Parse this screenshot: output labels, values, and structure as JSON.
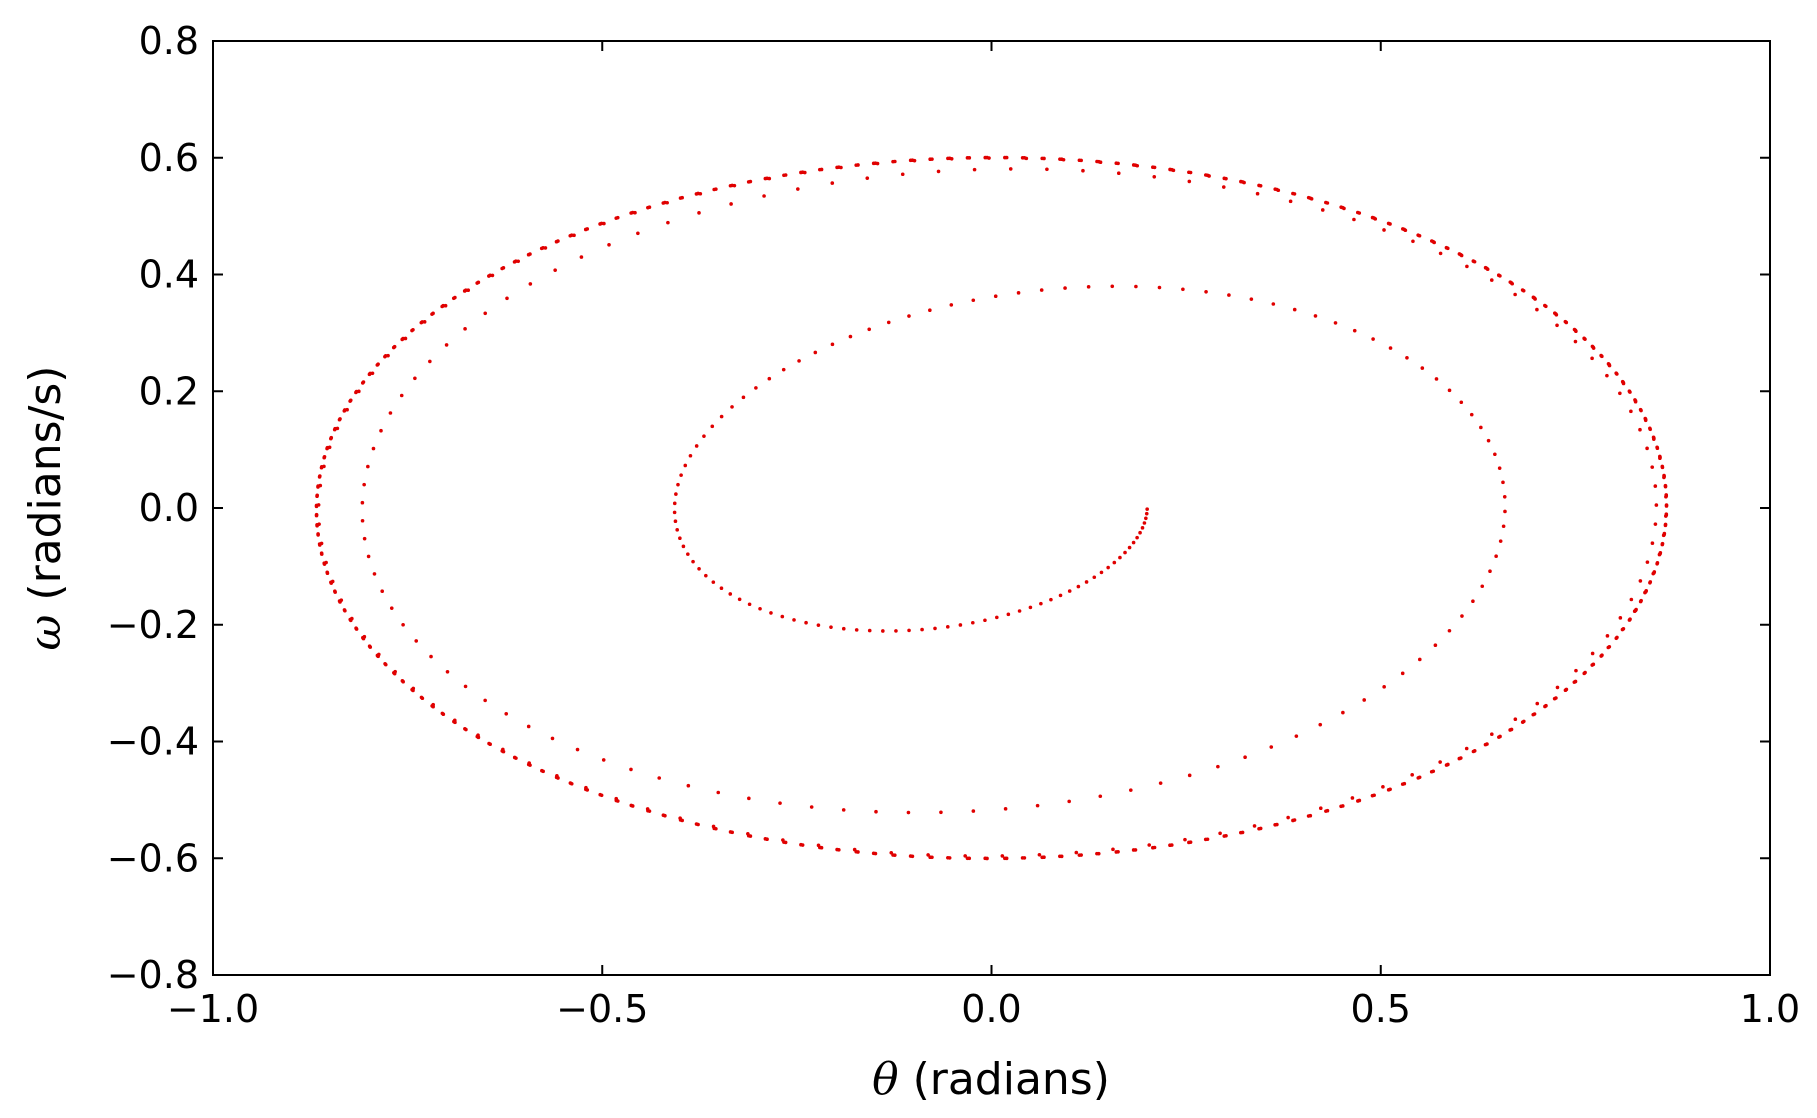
{
  "chart_data": {
    "type": "scatter",
    "xlabel": {
      "symbol": "θ",
      "text": " (radians)"
    },
    "ylabel": {
      "symbol": "ω",
      "text": " (radians/s)"
    },
    "xlim": [
      -1.0,
      1.0
    ],
    "ylim": [
      -0.8,
      0.8
    ],
    "xticks": [
      -1.0,
      -0.5,
      0.0,
      0.5,
      1.0
    ],
    "yticks": [
      -0.8,
      -0.6,
      -0.4,
      -0.2,
      0.0,
      0.2,
      0.4,
      0.6,
      0.8
    ],
    "xtick_labels": [
      "−1.0",
      "−0.5",
      "0.0",
      "0.5",
      "1.0"
    ],
    "ytick_labels": [
      "−0.8",
      "−0.6",
      "−0.4",
      "−0.2",
      "0.0",
      "0.2",
      "0.4",
      "0.6",
      "0.8"
    ],
    "grid": false,
    "legend": "none",
    "marker_color": "#e00000",
    "series": [
      {
        "values_description_free": true,
        "x": [
          0.2,
          0.2,
          0.199,
          0.197,
          0.193,
          0.188,
          0.183,
          0.177,
          0.171,
          0.165,
          0.163,
          0.165,
          0.17,
          0.18,
          0.194,
          0.21,
          0.228,
          0.25,
          0.275,
          0.3,
          0.325,
          0.35,
          0.375,
          0.4,
          0.425,
          0.45,
          0.475,
          0.5,
          0.52,
          0.54,
          0.555,
          0.566,
          0.574,
          0.578,
          0.58,
          0.578,
          0.574,
          0.566,
          0.555,
          0.54,
          0.52,
          0.5,
          0.475,
          0.45,
          0.42,
          0.39,
          0.36,
          0.32,
          0.28,
          0.24,
          0.2,
          0.16,
          0.12,
          0.08,
          0.04,
          0.0,
          -0.04,
          -0.08,
          -0.12,
          -0.16,
          -0.2,
          -0.25,
          -0.3,
          -0.35,
          -0.4,
          -0.45,
          -0.5,
          -0.55,
          -0.6,
          -0.65,
          -0.7,
          -0.74,
          -0.78,
          -0.81,
          -0.835,
          -0.855,
          -0.87,
          -0.878,
          -0.882,
          -0.88,
          -0.873,
          -0.86,
          -0.84,
          -0.815,
          -0.785,
          -0.75,
          -0.71,
          -0.665,
          -0.615,
          -0.56,
          -0.5,
          -0.44,
          -0.38,
          -0.32,
          -0.26,
          -0.2,
          -0.14,
          -0.08,
          -0.02,
          0.04,
          0.1,
          0.16,
          0.22,
          0.28,
          0.34,
          0.4,
          0.46,
          0.52,
          0.58,
          0.64,
          0.7,
          0.75,
          0.795,
          0.835,
          0.865,
          0.885,
          0.893,
          0.89,
          0.878,
          0.858,
          0.83,
          0.795,
          0.755,
          0.71,
          0.66,
          0.605,
          0.545,
          0.48,
          0.415,
          0.35,
          0.285,
          0.22,
          0.155,
          0.09,
          0.025,
          -0.04,
          -0.105,
          -0.17,
          -0.235,
          -0.3,
          -0.365,
          -0.43,
          -0.495,
          -0.56,
          -0.625,
          -0.685,
          -0.74,
          -0.79,
          -0.83,
          -0.86,
          -0.875,
          -0.868,
          -0.85,
          -0.82,
          -0.78,
          -0.73,
          -0.675,
          -0.615,
          -0.55,
          -0.48,
          -0.41,
          -0.34,
          -0.27,
          -0.2,
          -0.13,
          -0.06,
          0.01,
          0.08,
          0.15,
          0.22,
          0.29,
          0.36,
          0.43,
          0.5,
          0.57,
          0.64,
          0.7,
          0.755,
          0.8,
          0.835,
          0.858,
          0.868,
          0.865,
          0.85,
          0.823,
          0.785,
          0.738,
          0.683,
          0.62,
          0.553,
          0.483,
          0.41,
          0.335,
          0.26,
          0.185,
          0.11,
          0.035,
          -0.04,
          -0.115,
          -0.19,
          -0.265,
          -0.34,
          -0.415,
          -0.49,
          -0.56,
          -0.625,
          -0.685,
          -0.735,
          -0.78,
          -0.815,
          -0.84,
          -0.858,
          -0.866,
          -0.862,
          -0.846,
          -0.82,
          -0.784,
          -0.74,
          -0.688,
          -0.63,
          -0.567,
          -0.5,
          -0.43,
          -0.358,
          -0.285,
          -0.21,
          -0.135,
          -0.06,
          0.015,
          0.09,
          0.165,
          0.24,
          0.315,
          0.39,
          0.465,
          0.535,
          0.6,
          0.66,
          0.715,
          0.765,
          0.805,
          0.837,
          0.858,
          0.867,
          0.866
        ]
      }
    ]
  }
}
